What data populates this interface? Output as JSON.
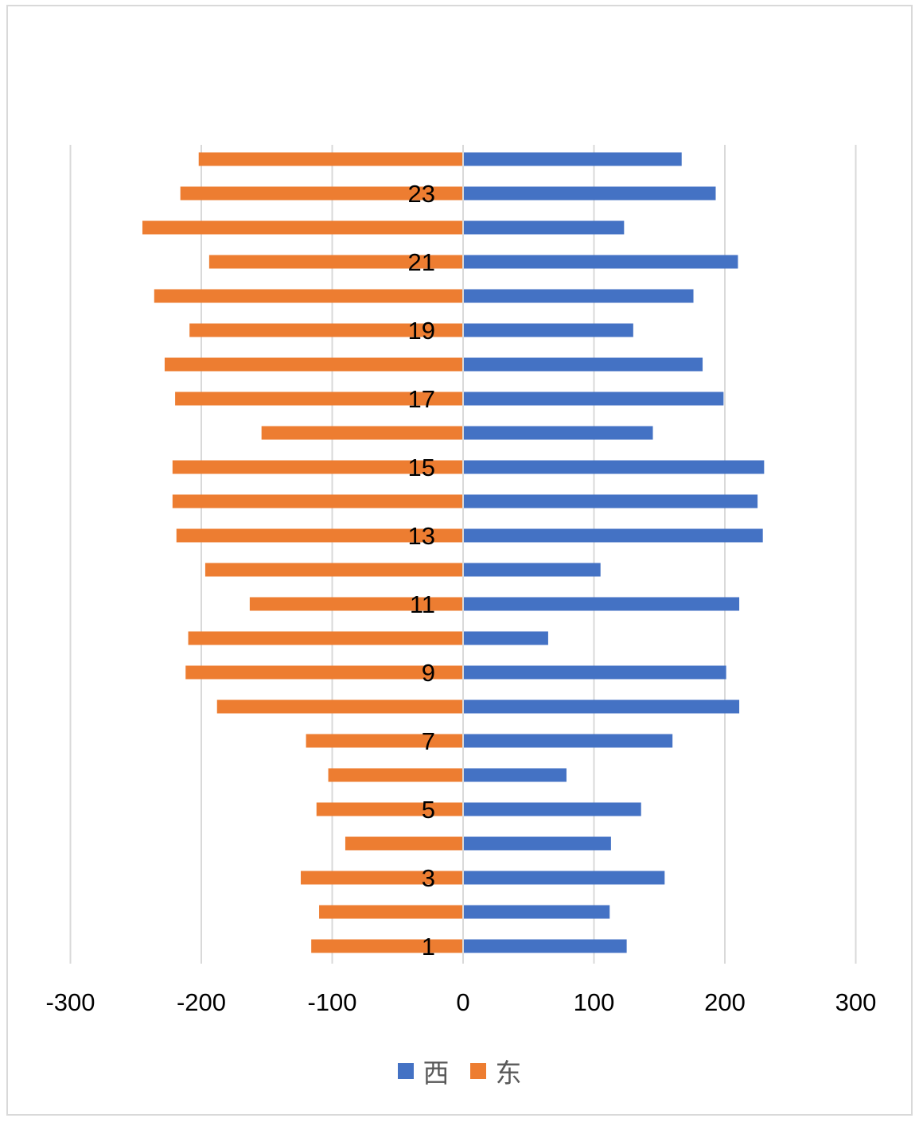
{
  "chart_data": {
    "type": "bar",
    "orientation": "horizontal",
    "categories": [
      "1",
      "2",
      "3",
      "4",
      "5",
      "6",
      "7",
      "8",
      "9",
      "10",
      "11",
      "12",
      "13",
      "14",
      "15",
      "16",
      "17",
      "18",
      "19",
      "20",
      "21",
      "22",
      "23",
      "24"
    ],
    "shown_category_labels": [
      "1",
      "3",
      "5",
      "7",
      "9",
      "11",
      "13",
      "15",
      "17",
      "19",
      "21",
      "23"
    ],
    "series": [
      {
        "name": "西",
        "color": "#4472C4",
        "values": [
          125,
          112,
          154,
          113,
          136,
          79,
          160,
          211,
          201,
          65,
          211,
          105,
          229,
          225,
          230,
          145,
          199,
          183,
          130,
          176,
          210,
          123,
          193,
          167
        ]
      },
      {
        "name": "东",
        "color": "#ED7D31",
        "values": [
          -116,
          -110,
          -124,
          -90,
          -112,
          -103,
          -120,
          -188,
          -212,
          -210,
          -163,
          -197,
          -219,
          -222,
          -222,
          -154,
          -220,
          -228,
          -209,
          -236,
          -194,
          -245,
          -216,
          -202
        ]
      }
    ],
    "xlim": [
      -300,
      300
    ],
    "xticks": [
      "-300",
      "-200",
      "-100",
      "0",
      "100",
      "200",
      "300"
    ],
    "xtick_values": [
      -300,
      -200,
      -100,
      0,
      100,
      200,
      300
    ],
    "grid": "vertical",
    "legend_position": "bottom"
  }
}
